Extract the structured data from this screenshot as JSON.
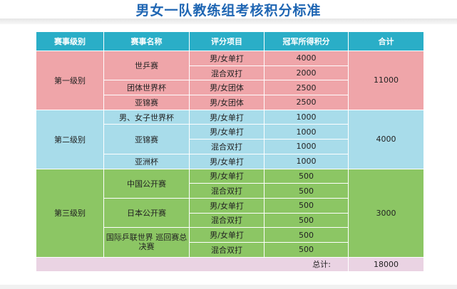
{
  "title": "男女一队教练组考核积分标准",
  "headers": [
    "赛事级别",
    "赛事名称",
    "评分项目",
    "冠军所得积分",
    "合计"
  ],
  "rows": [
    {
      "level": "第一级别",
      "event": "世乒赛",
      "item": "男/女单打",
      "points": "4000",
      "total": "11000"
    },
    {
      "item": "混合双打",
      "points": "2000"
    },
    {
      "event": "团体世界杯",
      "item": "男/女团体",
      "points": "2500"
    },
    {
      "event": "亚锦赛",
      "item": "男/女团体",
      "points": "2500"
    },
    {
      "level": "第二级别",
      "event": "男、女子世界杯",
      "item": "男/女单打",
      "points": "1000",
      "total": "4000"
    },
    {
      "event": "亚锦赛",
      "item": "男/女单打",
      "points": "1000"
    },
    {
      "item": "混合双打",
      "points": "1000"
    },
    {
      "event": "亚洲杯",
      "item": "男/女单打",
      "points": "1000"
    },
    {
      "level": "第三级别",
      "event": "中国公开赛",
      "item": "男/女单打",
      "points": "500",
      "total": "3000"
    },
    {
      "item": "混合双打",
      "points": "500"
    },
    {
      "event": "日本公开赛",
      "item": "男/女单打",
      "points": "500"
    },
    {
      "item": "混合双打",
      "points": "500"
    },
    {
      "event": "国际乒联世界\n巡回赛总决赛",
      "item": "男/女单打",
      "points": "500"
    },
    {
      "item": "混合双打",
      "points": "500"
    }
  ],
  "total": {
    "label": "总计:",
    "value": "18000"
  },
  "colors": {
    "header": "#2aaec7",
    "level1": "#efa5a9",
    "level2": "#a8dcea",
    "level3": "#8cc664",
    "total_row": "#ead3e3",
    "title": "#1f66b3"
  }
}
